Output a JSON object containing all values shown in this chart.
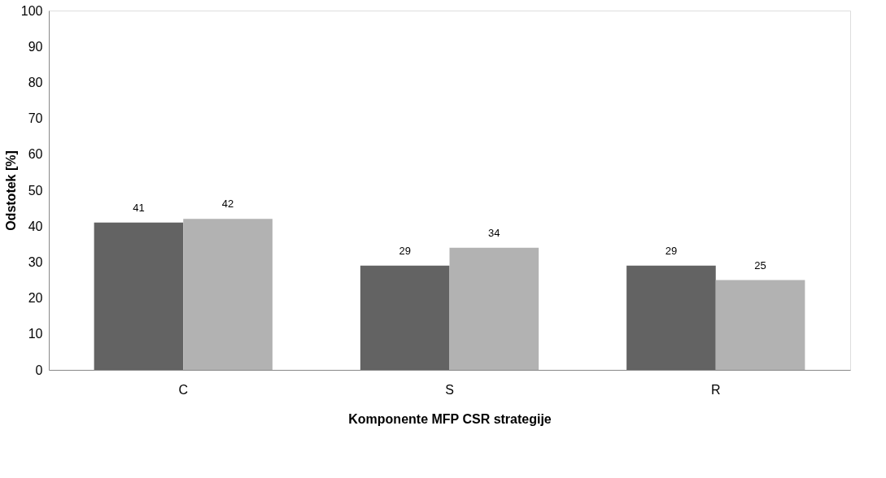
{
  "chart_data": {
    "type": "bar",
    "xlabel": "Komponente MFP CSR strategije",
    "ylabel": "Odstotek [%]",
    "categories": [
      "C",
      "S",
      "R"
    ],
    "series": [
      {
        "color": "#636363",
        "values": [
          41,
          29,
          29
        ]
      },
      {
        "color": "#b2b2b2",
        "values": [
          42,
          34,
          25
        ]
      }
    ],
    "ylim": [
      0,
      100
    ],
    "yticks": [
      0,
      10,
      20,
      30,
      40,
      50,
      60,
      70,
      80,
      90,
      100
    ],
    "grid": false,
    "legend": false,
    "data_labels": true
  }
}
